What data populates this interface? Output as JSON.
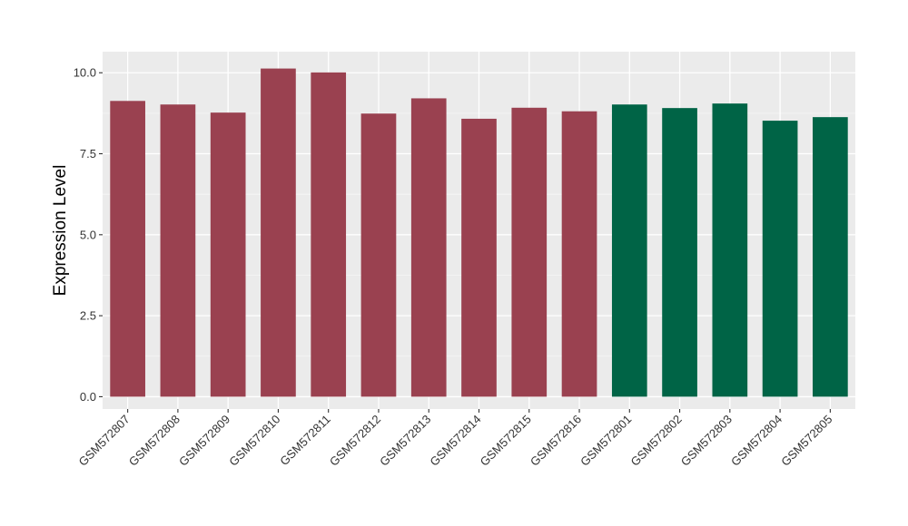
{
  "chart_data": {
    "type": "bar",
    "title": "",
    "xlabel": "",
    "ylabel": "Expression Level",
    "ylim": [
      -0.38,
      10.65
    ],
    "yticks": [
      0.0,
      2.5,
      5.0,
      7.5,
      10.0
    ],
    "ytick_labels": [
      "0.0",
      "2.5",
      "5.0",
      "7.5",
      "10.0"
    ],
    "grid": true,
    "legend": "none",
    "background": "#ebebeb",
    "categories": [
      "GSM572807",
      "GSM572808",
      "GSM572809",
      "GSM572810",
      "GSM572811",
      "GSM572812",
      "GSM572813",
      "GSM572814",
      "GSM572815",
      "GSM572816",
      "GSM572801",
      "GSM572802",
      "GSM572803",
      "GSM572804",
      "GSM572805"
    ],
    "values": [
      9.13,
      9.02,
      8.77,
      10.13,
      10.01,
      8.74,
      9.21,
      8.58,
      8.92,
      8.81,
      9.02,
      8.91,
      9.05,
      8.52,
      8.63
    ],
    "colors": [
      "#9a4150",
      "#9a4150",
      "#9a4150",
      "#9a4150",
      "#9a4150",
      "#9a4150",
      "#9a4150",
      "#9a4150",
      "#9a4150",
      "#9a4150",
      "#006446",
      "#006446",
      "#006446",
      "#006446",
      "#006446"
    ]
  }
}
